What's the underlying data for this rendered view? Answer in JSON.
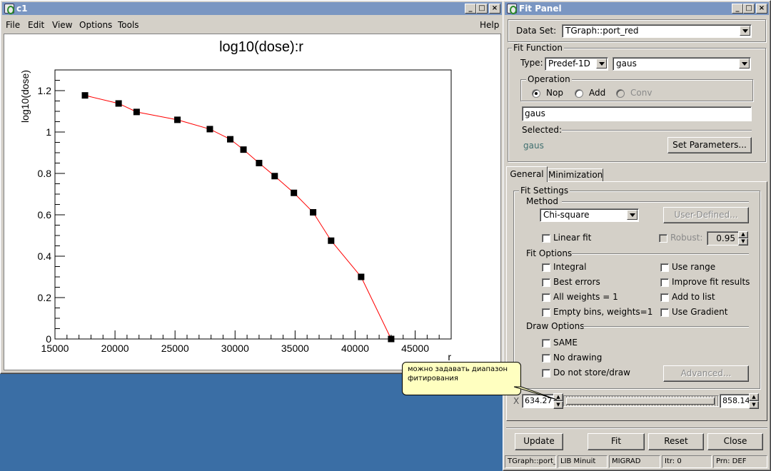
{
  "canvas_window": {
    "title": "c1",
    "menu": [
      "File",
      "Edit",
      "View",
      "Options",
      "Tools"
    ],
    "help": "Help",
    "axis_x_name": "r"
  },
  "chart_data": {
    "type": "line",
    "title": "log10(dose):r",
    "xlabel": "r",
    "ylabel": "log10(dose)",
    "xlim": [
      15000,
      48000
    ],
    "ylim": [
      0,
      1.3
    ],
    "x_ticks": [
      "15000",
      "20000",
      "25000",
      "30000",
      "35000",
      "40000",
      "45000"
    ],
    "y_ticks": [
      "0",
      "0.2",
      "0.4",
      "0.6",
      "0.8",
      "1",
      "1.2"
    ],
    "grid": false,
    "line_color": "#ff0000",
    "marker_color": "#000000",
    "series": [
      {
        "x": [
          17500,
          20300,
          21800,
          25200,
          27900,
          29600,
          30700,
          32000,
          33300,
          34900,
          36500,
          38000,
          40500,
          43000
        ],
        "y": [
          1.177,
          1.138,
          1.097,
          1.059,
          1.014,
          0.965,
          0.915,
          0.85,
          0.787,
          0.706,
          0.612,
          0.475,
          0.3,
          0.0
        ]
      }
    ]
  },
  "fit_panel": {
    "title": "Fit Panel",
    "data_set_label": "Data Set:",
    "data_set_value": "TGraph::port_red",
    "fit_function_group": "Fit Function",
    "type_label": "Type:",
    "type_value": "Predef-1D",
    "func_value": "gaus",
    "operation_group": "Operation",
    "op_nop": "Nop",
    "op_add": "Add",
    "op_conv": "Conv",
    "formula_value": "gaus",
    "selected_label": "Selected:",
    "selected_value": "gaus",
    "set_parameters": "Set Parameters...",
    "tab_general": "General",
    "tab_minimization": "Minimization",
    "fit_settings_group": "Fit Settings",
    "method_label": "Method",
    "method_value": "Chi-square",
    "user_defined": "User-Defined...",
    "linear_fit": "Linear fit",
    "robust": "Robust:",
    "robust_value": "0.95",
    "fit_options_label": "Fit Options",
    "integral": "Integral",
    "use_range": "Use range",
    "best_errors": "Best errors",
    "improve_fit": "Improve fit results",
    "all_weights": "All weights = 1",
    "add_to_list": "Add to list",
    "empty_bins": "Empty bins, weights=1",
    "use_gradient": "Use Gradient",
    "draw_options_label": "Draw Options",
    "same": "SAME",
    "no_drawing": "No drawing",
    "do_not_store": "Do not store/draw",
    "advanced": "Advanced...",
    "x_label": "X",
    "x_min": "634.27",
    "x_max": "858.14",
    "update": "Update",
    "fit": "Fit",
    "reset": "Reset",
    "close": "Close",
    "status": [
      "TGraph::port_",
      "LIB Minuit",
      "MIGRAD",
      "Itr: 0",
      "Prn: DEF"
    ]
  },
  "tooltip": {
    "line1": "можно задавать диапазон",
    "line2": "фитирования"
  }
}
